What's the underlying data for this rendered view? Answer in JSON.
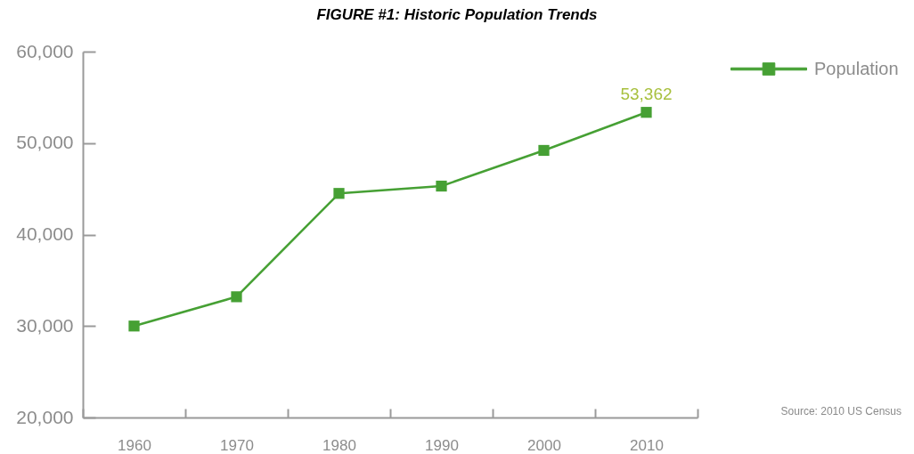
{
  "chart_data": {
    "type": "line",
    "title": "FIGURE #1: Historic Population Trends",
    "categories": [
      "1960",
      "1970",
      "1980",
      "1990",
      "2000",
      "2010"
    ],
    "series": [
      {
        "name": "Population",
        "color": "#46a034",
        "values": [
          30000,
          33200,
          44500,
          45300,
          49200,
          53362
        ],
        "value_labels": [
          null,
          null,
          null,
          null,
          null,
          "53,362"
        ]
      }
    ],
    "ylim": [
      20000,
      60000
    ],
    "yticks": [
      {
        "value": 20000,
        "label": "20,000"
      },
      {
        "value": 30000,
        "label": "30,000"
      },
      {
        "value": 40000,
        "label": "40,000"
      },
      {
        "value": 50000,
        "label": "50,000"
      },
      {
        "value": 60000,
        "label": "60,000"
      }
    ],
    "grid": false,
    "legend": "top right",
    "marker": "square",
    "line_style": "solid",
    "annotations": [
      "Source: 2010 US Census"
    ]
  }
}
